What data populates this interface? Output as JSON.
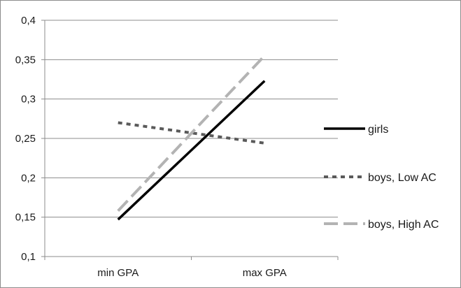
{
  "chart_data": {
    "type": "line",
    "categories": [
      "min GPA",
      "max GPA"
    ],
    "ylim": [
      0.1,
      0.4
    ],
    "yticks": [
      {
        "value": 0.1,
        "label": "0,1"
      },
      {
        "value": 0.15,
        "label": "0,15"
      },
      {
        "value": 0.2,
        "label": "0,2"
      },
      {
        "value": 0.25,
        "label": "0,25"
      },
      {
        "value": 0.3,
        "label": "0,3"
      },
      {
        "value": 0.35,
        "label": "0,35"
      },
      {
        "value": 0.4,
        "label": "0,4"
      }
    ],
    "grid": true,
    "legend_position": "right",
    "series": [
      {
        "name": "girls",
        "values": [
          0.147,
          0.323
        ],
        "color": "#000000",
        "style": "solid"
      },
      {
        "name": "boys, Low AC",
        "values": [
          0.27,
          0.244
        ],
        "color": "#5a5a5a",
        "style": "dotted"
      },
      {
        "name": "boys, High AC",
        "values": [
          0.158,
          0.355
        ],
        "color": "#b3b3b3",
        "style": "dashed"
      }
    ],
    "title": "",
    "xlabel": "",
    "ylabel": ""
  }
}
